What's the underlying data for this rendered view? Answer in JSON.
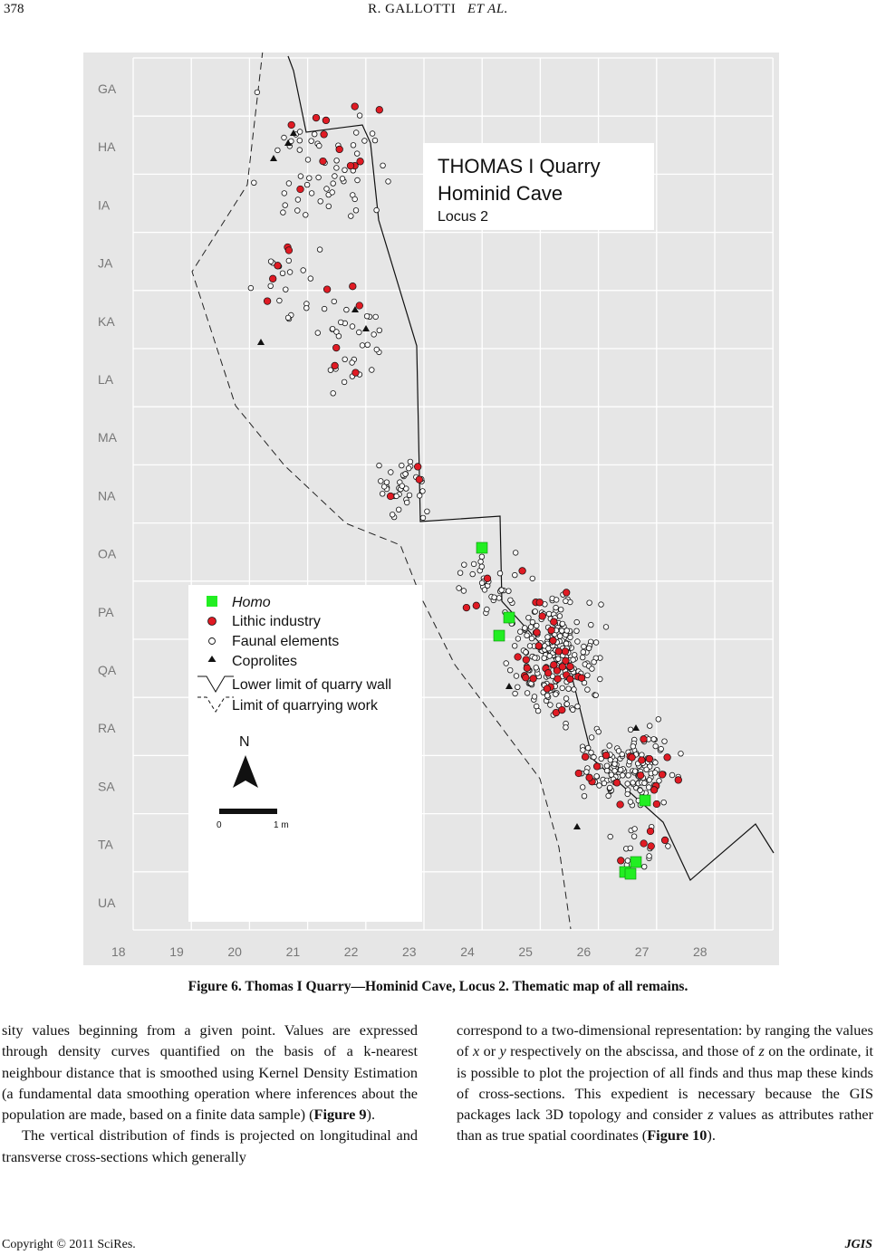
{
  "header": {
    "page_number": "378",
    "authors": "R. GALLOTTI",
    "authors_suffix": "ET AL."
  },
  "figure": {
    "map_title": "THOMAS I Quarry",
    "map_subtitle": "Hominid Cave",
    "map_locus": "Locus 2",
    "row_labels": [
      "GA",
      "HA",
      "IA",
      "JA",
      "KA",
      "LA",
      "MA",
      "NA",
      "OA",
      "PA",
      "QA",
      "RA",
      "SA",
      "TA",
      "UA"
    ],
    "col_labels": [
      "18",
      "19",
      "20",
      "21",
      "22",
      "23",
      "24",
      "25",
      "26",
      "27",
      "28"
    ],
    "legend": {
      "homo": "Homo",
      "lithic": "Lithic industry",
      "faunal": "Faunal elements",
      "coprolites": "Coprolites",
      "lower_limit": "Lower limit of quarry wall",
      "quarry_limit": "Limit of quarrying work"
    },
    "north": "N",
    "scale_start": "0",
    "scale_end": "1 m",
    "colors": {
      "homo": "#22ee22",
      "lithic": "#e01b24",
      "faunal": "#ffffff",
      "coprolite": "#111111",
      "background": "#e6e6e6",
      "grid": "#ffffff"
    },
    "caption": "Figure 6. Thomas I Quarry—Hominid Cave, Locus 2. Thematic map of all remains."
  },
  "body": {
    "left_p1": "sity values beginning from a given point. Values are expressed through density curves quantified on the basis of a k-nearest neighbour distance that is smoothed using Kernel Density Estimation (a fundamental data smoothing operation where inferences about the population are made, based on a finite data sample) (",
    "left_p1_ref": "Figure 9",
    "left_p1_end": ").",
    "left_p2": "The vertical distribution of finds is projected on longitudinal and transverse cross-sections which generally",
    "right_p1_a": "correspond to a two-dimensional representation: by ranging the values of ",
    "right_x": "x",
    "right_or": " or ",
    "right_y": "y",
    "right_p1_b": " respectively on the abscissa, and those of ",
    "right_z": "z",
    "right_p1_c": " on the ordinate, it is possible to plot the projection of all finds and thus map these kinds of cross-sections. This expedient is necessary because the GIS packages lack 3D topology and consider ",
    "right_z2": "z",
    "right_p1_d": " values as attributes rather than as true spatial coordinates (",
    "right_ref": "Figure 10",
    "right_end": ")."
  },
  "footer": {
    "copyright": "Copyright © 2011 SciRes.",
    "journal": "JGIS"
  }
}
